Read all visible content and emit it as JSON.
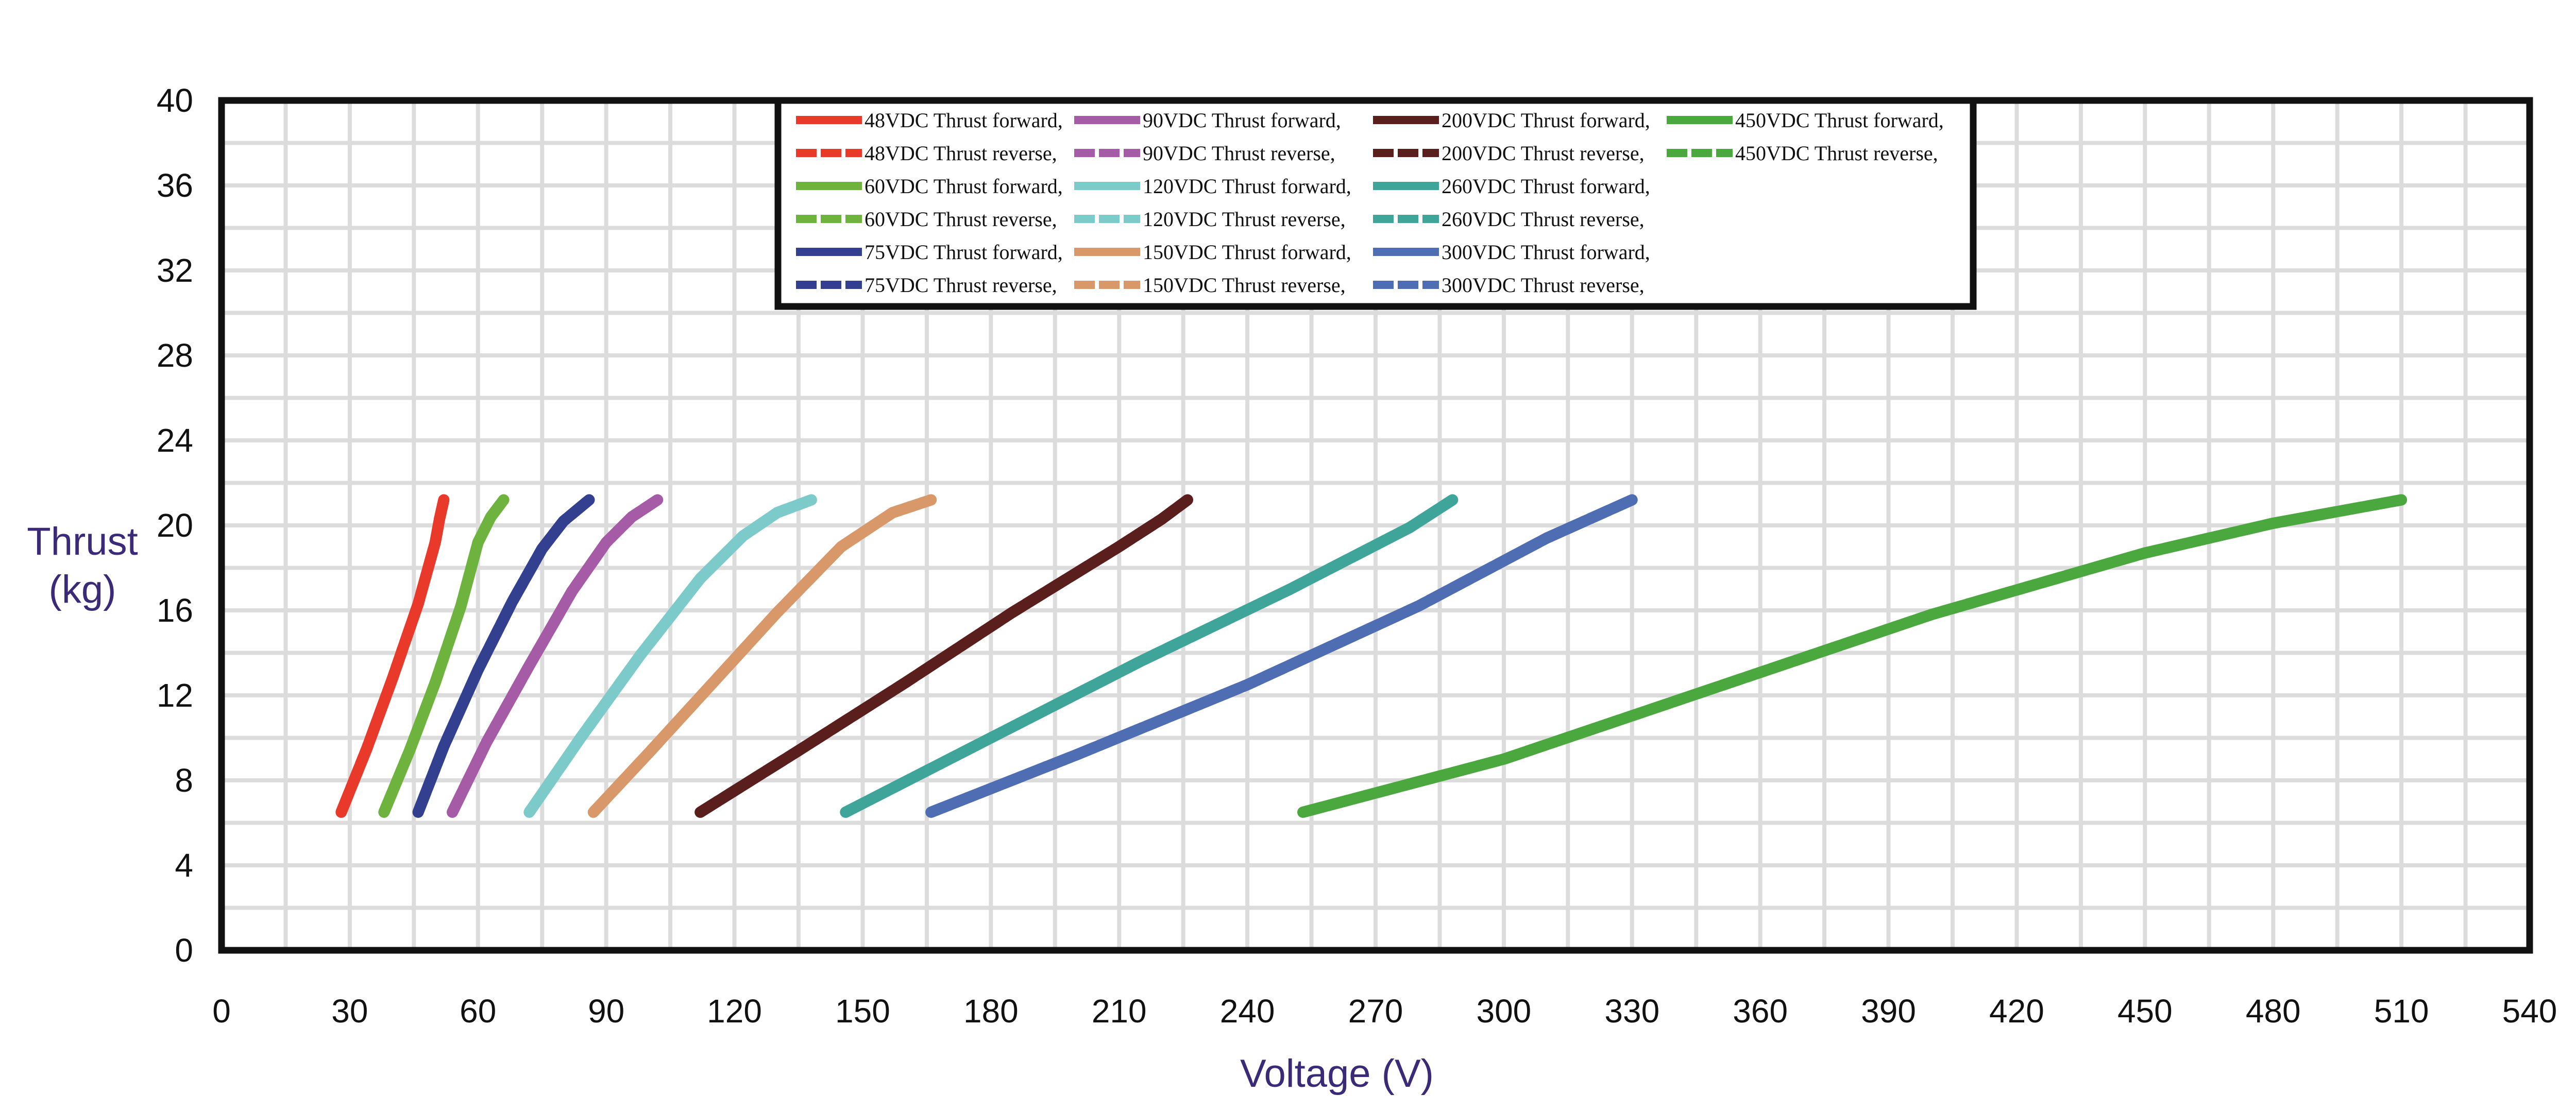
{
  "chart_data": {
    "type": "line",
    "title": "",
    "xlabel": "Voltage (V)",
    "ylabel": "Thrust\n(kg)",
    "xlim": [
      0,
      540
    ],
    "ylim": [
      0,
      40
    ],
    "x_ticks": [
      0,
      30,
      60,
      90,
      120,
      150,
      180,
      210,
      240,
      270,
      300,
      330,
      360,
      390,
      420,
      450,
      480,
      510,
      540
    ],
    "y_ticks": [
      0,
      4,
      8,
      12,
      16,
      20,
      24,
      28,
      32,
      36,
      40
    ],
    "x_minor_step": 15,
    "y_minor_step": 2,
    "grid": true,
    "legend_position": "top-center",
    "series": [
      {
        "name": "48VDC Thrust forward,",
        "color": "#e8392b",
        "dash": "solid",
        "x": [
          28,
          34,
          40,
          46,
          50,
          51,
          52
        ],
        "y": [
          6.5,
          9.5,
          12.8,
          16.3,
          19.2,
          20.3,
          21.2
        ]
      },
      {
        "name": "48VDC Thrust reverse,",
        "color": "#e8392b",
        "dash": "dashed",
        "x": [
          28,
          34,
          40,
          46,
          50,
          51,
          52
        ],
        "y": [
          6.5,
          9.5,
          12.8,
          16.3,
          19.2,
          20.3,
          21.2
        ]
      },
      {
        "name": "60VDC Thrust forward,",
        "color": "#6fb33f",
        "dash": "solid",
        "x": [
          38,
          44,
          50,
          56,
          60,
          63,
          66
        ],
        "y": [
          6.5,
          9.4,
          12.6,
          16.2,
          19.2,
          20.4,
          21.2
        ]
      },
      {
        "name": "60VDC Thrust reverse,",
        "color": "#6fb33f",
        "dash": "dashed",
        "x": [
          38,
          44,
          50,
          56,
          60,
          63,
          66
        ],
        "y": [
          6.5,
          9.4,
          12.6,
          16.2,
          19.2,
          20.4,
          21.2
        ]
      },
      {
        "name": "75VDC Thrust forward,",
        "color": "#33408f",
        "dash": "solid",
        "x": [
          46,
          52,
          60,
          68,
          75,
          80,
          86
        ],
        "y": [
          6.5,
          9.6,
          13.2,
          16.4,
          18.9,
          20.2,
          21.2
        ]
      },
      {
        "name": "75VDC Thrust reverse,",
        "color": "#33408f",
        "dash": "dashed",
        "x": [
          46,
          52,
          60,
          68,
          75,
          80,
          86
        ],
        "y": [
          6.5,
          9.6,
          13.2,
          16.4,
          18.9,
          20.2,
          21.2
        ]
      },
      {
        "name": "90VDC  Thrust forward,",
        "color": "#a55ba5",
        "dash": "solid",
        "x": [
          54,
          62,
          72,
          82,
          90,
          96,
          102
        ],
        "y": [
          6.5,
          9.8,
          13.4,
          16.9,
          19.2,
          20.4,
          21.2
        ]
      },
      {
        "name": "90VDC  Thrust reverse,",
        "color": "#a55ba5",
        "dash": "dashed",
        "x": [
          54,
          62,
          72,
          82,
          90,
          96,
          102
        ],
        "y": [
          6.5,
          9.8,
          13.4,
          16.9,
          19.2,
          20.4,
          21.2
        ]
      },
      {
        "name": "120VDC Thrust forward,",
        "color": "#7ccbca",
        "dash": "solid",
        "x": [
          72,
          84,
          98,
          112,
          122,
          130,
          138
        ],
        "y": [
          6.5,
          10.0,
          13.9,
          17.5,
          19.5,
          20.6,
          21.2
        ]
      },
      {
        "name": "120VDC Thrust reverse,",
        "color": "#7ccbca",
        "dash": "dashed",
        "x": [
          72,
          84,
          98,
          112,
          122,
          130,
          138
        ],
        "y": [
          6.5,
          10.0,
          13.9,
          17.5,
          19.5,
          20.6,
          21.2
        ]
      },
      {
        "name": "150VDC Thrust forward,",
        "color": "#d8986a",
        "dash": "solid",
        "x": [
          87,
          100,
          115,
          130,
          145,
          157,
          166
        ],
        "y": [
          6.5,
          9.3,
          12.6,
          15.9,
          19.0,
          20.6,
          21.2
        ]
      },
      {
        "name": "150VDC Thrust reverse,",
        "color": "#d8986a",
        "dash": "dashed",
        "x": [
          87,
          100,
          115,
          130,
          145,
          157,
          166
        ],
        "y": [
          6.5,
          9.3,
          12.6,
          15.9,
          19.0,
          20.6,
          21.2
        ]
      },
      {
        "name": "200VDC Thrust forward,",
        "color": "#5a1f1d",
        "dash": "solid",
        "x": [
          112,
          135,
          160,
          185,
          210,
          220,
          226
        ],
        "y": [
          6.5,
          9.4,
          12.6,
          15.9,
          19.0,
          20.3,
          21.2
        ]
      },
      {
        "name": "200VDC Thrust reverse,",
        "color": "#5a1f1d",
        "dash": "dashed",
        "x": [
          112,
          135,
          160,
          185,
          210,
          220,
          226
        ],
        "y": [
          6.5,
          9.4,
          12.6,
          15.9,
          19.0,
          20.3,
          21.2
        ]
      },
      {
        "name": "260VDC Thrust forward,",
        "color": "#3fa59a",
        "dash": "solid",
        "x": [
          146,
          180,
          215,
          250,
          278,
          288
        ],
        "y": [
          6.5,
          10.0,
          13.6,
          17.0,
          19.9,
          21.2
        ]
      },
      {
        "name": "260VDC Thrust reverse,",
        "color": "#3fa59a",
        "dash": "dashed",
        "x": [
          146,
          180,
          215,
          250,
          278,
          288
        ],
        "y": [
          6.5,
          10.0,
          13.6,
          17.0,
          19.9,
          21.2
        ]
      },
      {
        "name": "300VDC Thrust forward,",
        "color": "#4f6db2",
        "dash": "solid",
        "x": [
          166,
          200,
          240,
          280,
          310,
          330
        ],
        "y": [
          6.5,
          9.2,
          12.5,
          16.2,
          19.4,
          21.2
        ]
      },
      {
        "name": "300VDC Thrust reverse,",
        "color": "#4f6db2",
        "dash": "dashed",
        "x": [
          166,
          200,
          240,
          280,
          310,
          330
        ],
        "y": [
          6.5,
          9.2,
          12.5,
          16.2,
          19.4,
          21.2
        ]
      },
      {
        "name": "450VDC Thrust forward,",
        "color": "#4aa83e",
        "dash": "solid",
        "x": [
          253,
          300,
          350,
          400,
          450,
          480,
          510
        ],
        "y": [
          6.5,
          9.0,
          12.4,
          15.8,
          18.7,
          20.1,
          21.2
        ]
      },
      {
        "name": "450VDC Thrust reverse,",
        "color": "#4aa83e",
        "dash": "dashed",
        "x": [
          253,
          300,
          350,
          400,
          450,
          480,
          510
        ],
        "y": [
          6.5,
          9.0,
          12.4,
          15.8,
          18.7,
          20.1,
          21.2
        ]
      }
    ]
  }
}
